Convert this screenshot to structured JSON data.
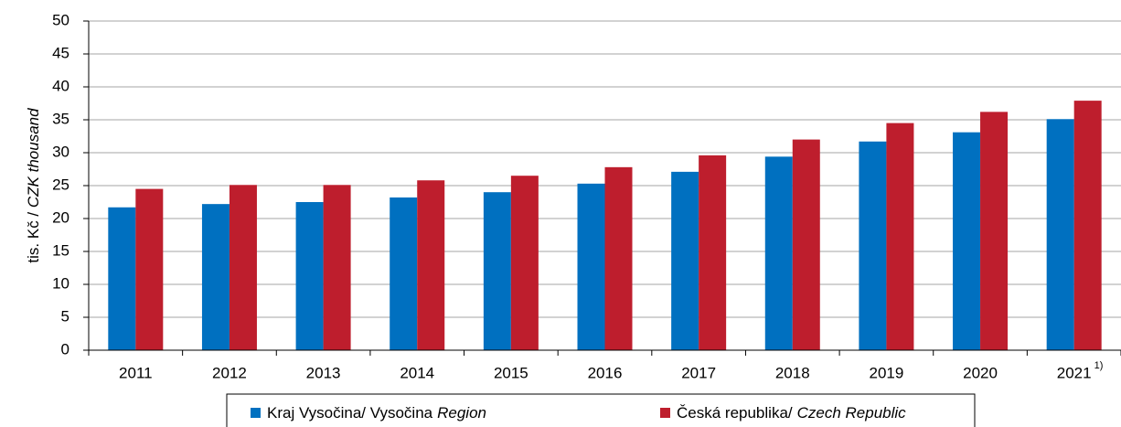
{
  "chart_data": {
    "type": "bar",
    "ylabel": {
      "text": "tis. Kč / ",
      "italic": "CZK thousand"
    },
    "categories": [
      "2011",
      "2012",
      "2013",
      "2014",
      "2015",
      "2016",
      "2017",
      "2018",
      "2019",
      "2020",
      "2021"
    ],
    "category_superscripts": [
      null,
      null,
      null,
      null,
      null,
      null,
      null,
      null,
      null,
      null,
      "1)"
    ],
    "series": [
      {
        "name": "Kraj Vysočina/ Vysočina",
        "name_italic": "Region",
        "color": "#0070c0",
        "values": [
          21.7,
          22.2,
          22.5,
          23.2,
          24.0,
          25.3,
          27.1,
          29.4,
          31.7,
          33.1,
          35.1
        ]
      },
      {
        "name": "Česká republika/",
        "name_italic": "Czech Republic",
        "color": "#be1e2d",
        "values": [
          24.5,
          25.1,
          25.1,
          25.8,
          26.5,
          27.8,
          29.6,
          32.0,
          34.5,
          36.2,
          37.9
        ]
      }
    ],
    "ylim": [
      0,
      50
    ],
    "yticks": [
      0,
      5,
      10,
      15,
      20,
      25,
      30,
      35,
      40,
      45,
      50
    ],
    "grid": true,
    "legend": "bottom"
  }
}
